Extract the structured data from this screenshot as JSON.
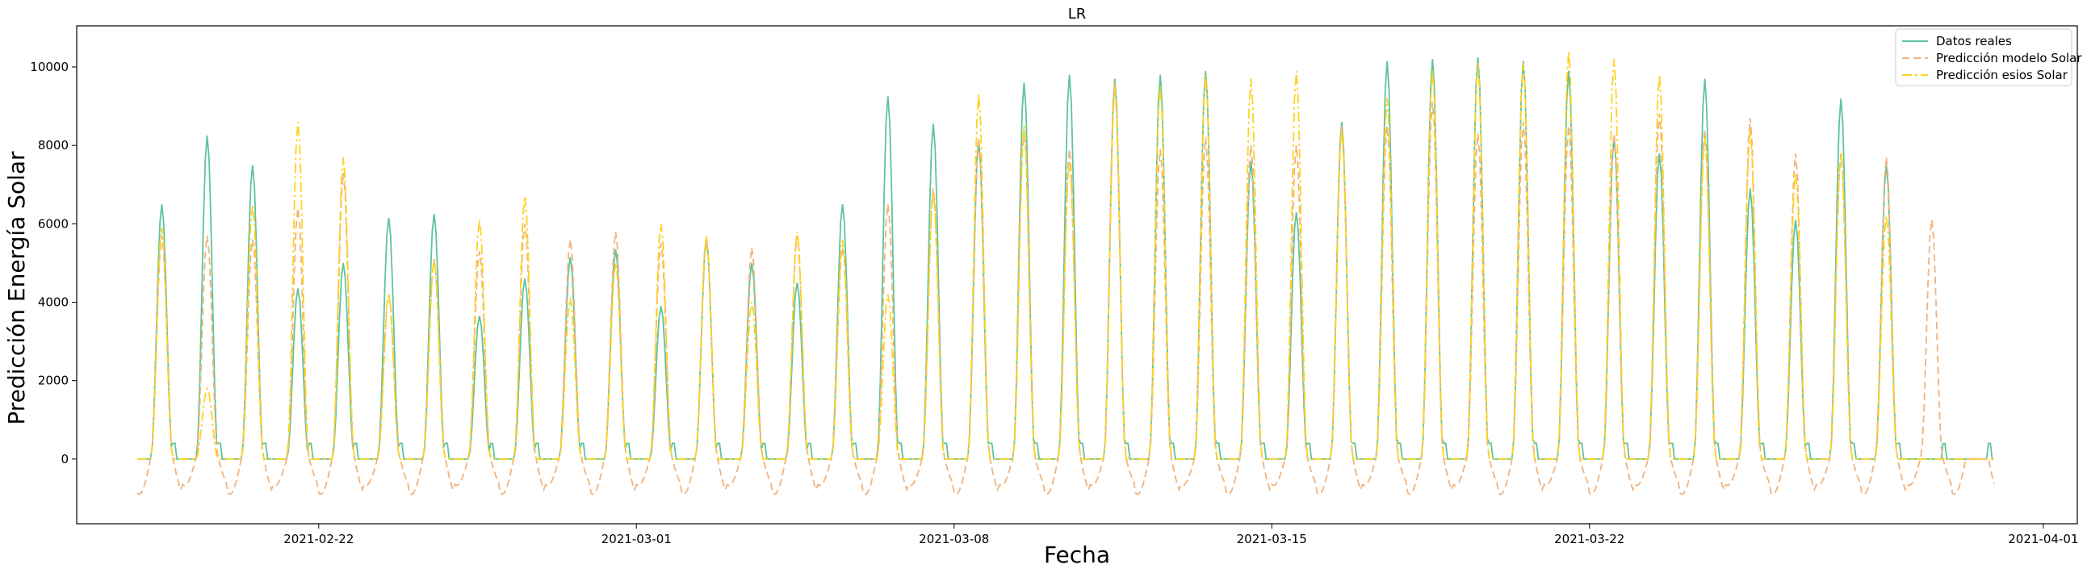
{
  "chart_data": {
    "type": "line",
    "title": "LR",
    "xlabel": "Fecha",
    "ylabel": "Predicción Energía Solar",
    "xlim": [
      "2021-02-16T16:00",
      "2021-04-01T18:00"
    ],
    "ylim": [
      -1650,
      11050
    ],
    "x_ticks": [
      "2021-02-22",
      "2021-03-01",
      "2021-03-08",
      "2021-03-15",
      "2021-03-22",
      "2021-04-01"
    ],
    "y_ticks": [
      0,
      2000,
      4000,
      6000,
      8000,
      10000
    ],
    "legend": "top-right",
    "grid": false,
    "x_start": "2021-02-18T00:00",
    "x_end": "2021-03-30T23:00",
    "peak_dates": [
      "2021-02-18",
      "2021-02-19",
      "2021-02-20",
      "2021-02-21",
      "2021-02-22",
      "2021-02-23",
      "2021-02-24",
      "2021-02-25",
      "2021-02-26",
      "2021-02-27",
      "2021-02-28",
      "2021-03-01",
      "2021-03-02",
      "2021-03-03",
      "2021-03-04",
      "2021-03-05",
      "2021-03-06",
      "2021-03-07",
      "2021-03-08",
      "2021-03-09",
      "2021-03-10",
      "2021-03-11",
      "2021-03-12",
      "2021-03-13",
      "2021-03-14",
      "2021-03-15",
      "2021-03-16",
      "2021-03-17",
      "2021-03-18",
      "2021-03-19",
      "2021-03-20",
      "2021-03-21",
      "2021-03-22",
      "2021-03-23",
      "2021-03-24",
      "2021-03-25",
      "2021-03-26",
      "2021-03-27",
      "2021-03-28",
      "2021-03-29",
      "2021-03-30"
    ],
    "series": [
      {
        "name": "Datos reales",
        "color": "#5ec49b",
        "dash": "solid",
        "daily_peaks": [
          6500,
          8250,
          7500,
          4350,
          5000,
          6150,
          6250,
          3650,
          4600,
          5150,
          5350,
          3900,
          5600,
          5000,
          4500,
          6500,
          9250,
          8550,
          8100,
          9600,
          9800,
          9700,
          9800,
          9900,
          7600,
          6300,
          8600,
          10150,
          10200,
          10250,
          10150,
          9900,
          8200,
          7800,
          9700,
          6900,
          6100,
          9200,
          7500,
          0,
          0
        ],
        "night_floor": 0
      },
      {
        "name": "Predicción modelo Solar",
        "color": "#f2b27c",
        "dash": "dashed",
        "daily_peaks": [
          5700,
          5700,
          5600,
          6400,
          7300,
          4200,
          5100,
          5300,
          6000,
          5600,
          5800,
          5500,
          5600,
          5400,
          5700,
          5400,
          6500,
          6900,
          8200,
          8400,
          7900,
          9600,
          7900,
          8200,
          8000,
          8000,
          8500,
          8500,
          9100,
          8300,
          8600,
          8500,
          8300,
          8800,
          8400,
          8700,
          7800,
          7800,
          7700,
          6100,
          0
        ],
        "night_floor": -900
      },
      {
        "name": "Predicción esios Solar",
        "color": "#ffd21f",
        "dash": "dashdot",
        "daily_peaks": [
          5900,
          1800,
          6500,
          8600,
          7700,
          4200,
          5100,
          6100,
          6700,
          4100,
          5000,
          6000,
          5700,
          4000,
          5800,
          5600,
          4200,
          6800,
          9300,
          8500,
          7600,
          9500,
          9500,
          9800,
          9700,
          9900,
          8400,
          9200,
          9900,
          10100,
          10100,
          10400,
          10200,
          9800,
          8200,
          8400,
          7300,
          7800,
          6200,
          0,
          0
        ],
        "night_floor": 0
      }
    ]
  }
}
